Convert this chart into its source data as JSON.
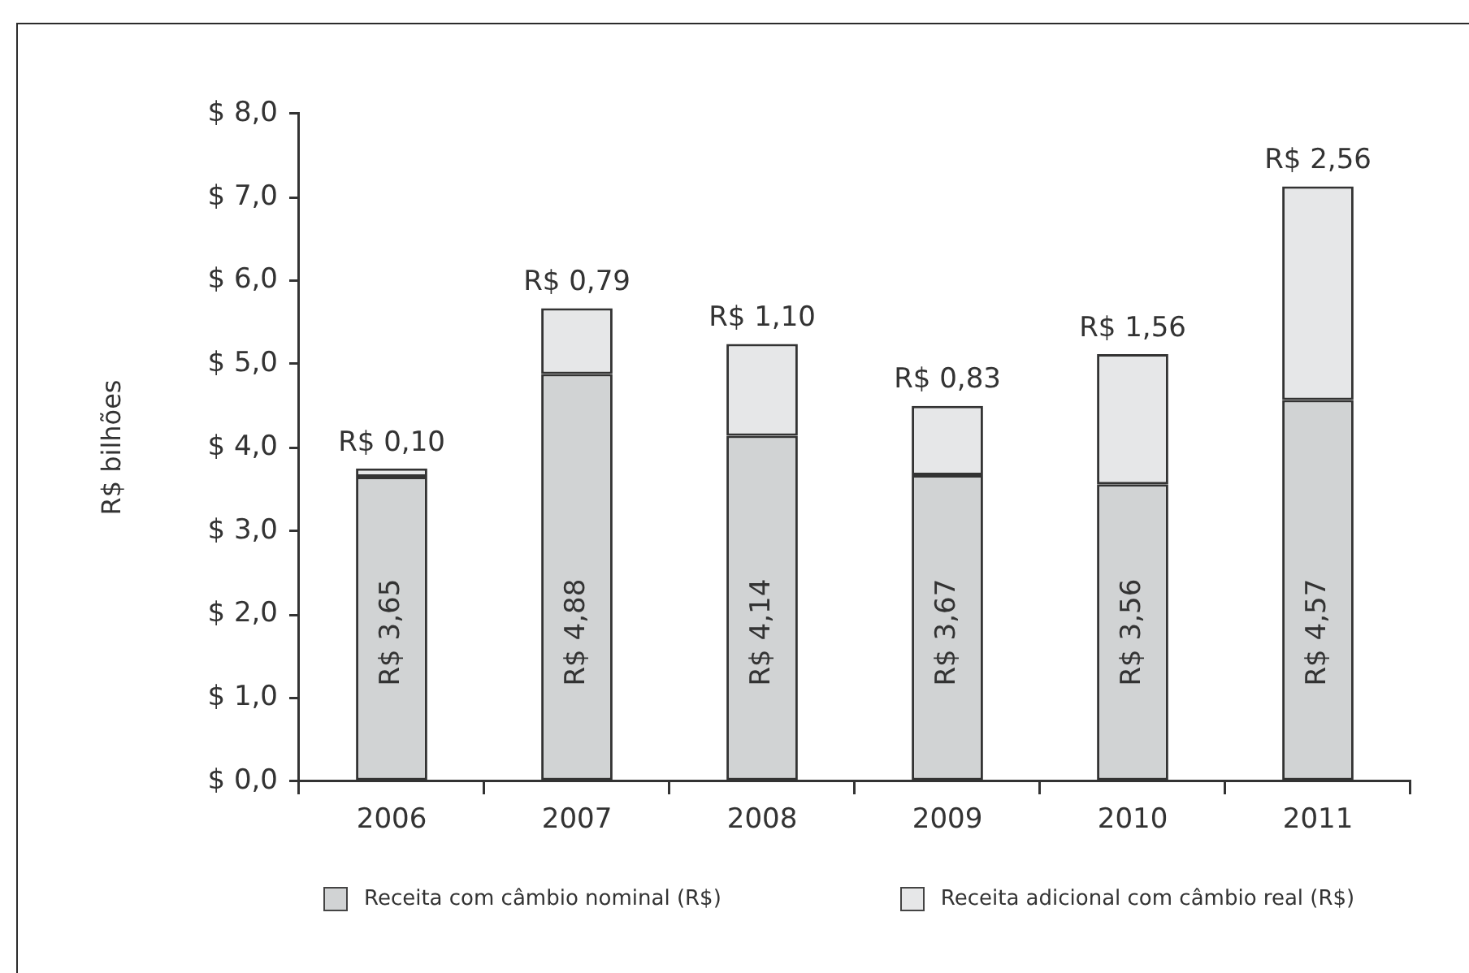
{
  "chart_data": {
    "type": "bar",
    "stacked": true,
    "ylabel": "R$ bilhões",
    "categories": [
      "2006",
      "2007",
      "2008",
      "2009",
      "2010",
      "2011"
    ],
    "series": [
      {
        "name": "Receita com câmbio nominal (R$)",
        "color": "#d1d3d4",
        "values": [
          3.65,
          4.88,
          4.14,
          3.67,
          3.56,
          4.57
        ],
        "value_labels": [
          "R$ 3,65",
          "R$ 4,88",
          "R$ 4,14",
          "R$ 3,67",
          "R$ 3,56",
          "R$ 4,57"
        ]
      },
      {
        "name": "Receita adicional com câmbio real (R$)",
        "color": "#e6e7e8",
        "values": [
          0.1,
          0.79,
          1.1,
          0.83,
          1.56,
          2.56
        ],
        "value_labels": [
          "R$ 0,10",
          "R$ 0,79",
          "R$ 1,10",
          "R$ 0,83",
          "R$ 1,56",
          "R$ 2,56"
        ]
      }
    ],
    "ylim": [
      0,
      8
    ],
    "yticks": [
      {
        "value": 0,
        "label": "$ 0,0"
      },
      {
        "value": 1,
        "label": "$ 1,0"
      },
      {
        "value": 2,
        "label": "$ 2,0"
      },
      {
        "value": 3,
        "label": "$ 3,0"
      },
      {
        "value": 4,
        "label": "$ 4,0"
      },
      {
        "value": 5,
        "label": "$ 5,0"
      },
      {
        "value": 6,
        "label": "$ 6,0"
      },
      {
        "value": 7,
        "label": "$ 7,0"
      },
      {
        "value": 8,
        "label": "$ 8,0"
      }
    ],
    "legend": "bottom"
  }
}
